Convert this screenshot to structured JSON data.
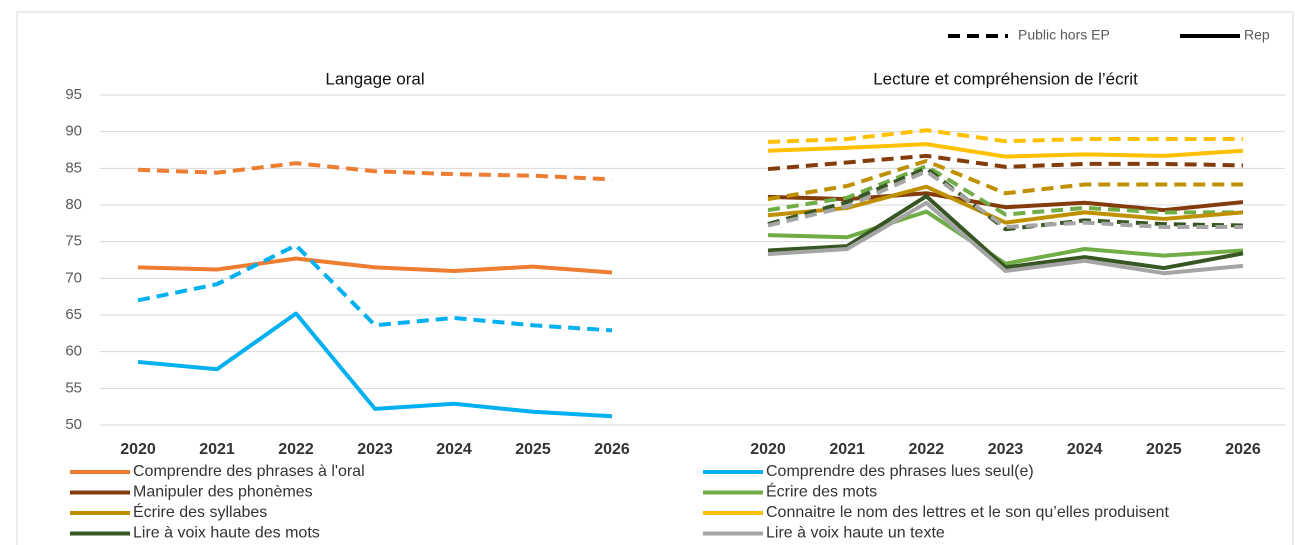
{
  "chart_data": {
    "type": "line",
    "categories": [
      "2020",
      "2021",
      "2022",
      "2023",
      "2024",
      "2025",
      "2026"
    ],
    "ylim": [
      50,
      95
    ],
    "yticks": [
      50,
      55,
      60,
      65,
      70,
      75,
      80,
      85,
      90,
      95
    ],
    "grid": true,
    "styles": [
      {
        "name": "Public hors EP",
        "dashed": true
      },
      {
        "name": "Rep",
        "dashed": false
      }
    ],
    "series": [
      {
        "name": "Comprendre des phrases à l'oral",
        "color": "#ed7d31",
        "panel": 0,
        "values": [
          [
            84.8,
            84.4,
            85.7,
            84.6,
            84.2,
            84.0,
            83.5
          ],
          [
            71.5,
            71.2,
            72.7,
            71.5,
            71.0,
            71.6,
            70.8
          ]
        ]
      },
      {
        "name": "Comprendre des phrases lues seul(e)",
        "color": "#00b0f0",
        "panel": 0,
        "values": [
          [
            67.0,
            69.2,
            74.5,
            63.6,
            64.6,
            63.6,
            62.9
          ],
          [
            58.6,
            57.6,
            65.2,
            52.2,
            52.9,
            51.8,
            51.2
          ]
        ]
      },
      {
        "name": "Manipuler des phonèmes",
        "color": "#843c0c",
        "panel": 1,
        "values": [
          [
            84.9,
            85.8,
            86.7,
            85.2,
            85.6,
            85.6,
            85.4
          ],
          [
            81.1,
            80.8,
            81.6,
            79.7,
            80.3,
            79.3,
            80.4
          ]
        ]
      },
      {
        "name": "Écrire des mots",
        "color": "#70ad47",
        "panel": 1,
        "values": [
          [
            79.3,
            81.0,
            85.3,
            78.7,
            79.6,
            79.0,
            79.0
          ],
          [
            75.9,
            75.6,
            79.1,
            72.0,
            74.0,
            73.1,
            73.8
          ]
        ]
      },
      {
        "name": "Écrire des syllabes",
        "color": "#bf9000",
        "panel": 1,
        "values": [
          [
            80.8,
            82.6,
            86.0,
            81.6,
            82.8,
            82.8,
            82.8
          ],
          [
            78.6,
            79.6,
            82.5,
            77.6,
            79.0,
            78.1,
            79.0
          ]
        ]
      },
      {
        "name": "Connaitre le nom des lettres et le son qu’elles produisent",
        "color": "#ffc000",
        "panel": 1,
        "values": [
          [
            88.6,
            89.0,
            90.2,
            88.7,
            89.0,
            89.0,
            89.0
          ],
          [
            87.4,
            87.8,
            88.3,
            86.6,
            86.9,
            86.7,
            87.4
          ]
        ]
      },
      {
        "name": "Lire à voix haute des mots",
        "color": "#375623",
        "panel": 1,
        "values": [
          [
            77.4,
            80.4,
            85.0,
            76.7,
            77.9,
            77.4,
            77.2
          ],
          [
            73.8,
            74.4,
            81.2,
            71.5,
            72.9,
            71.4,
            73.4
          ]
        ]
      },
      {
        "name": "Lire à voix haute un texte",
        "color": "#a5a5a5",
        "panel": 1,
        "values": [
          [
            77.2,
            79.8,
            84.6,
            77.0,
            77.6,
            77.0,
            77.0
          ],
          [
            73.3,
            74.0,
            80.3,
            71.0,
            72.4,
            70.7,
            71.7
          ]
        ]
      }
    ],
    "panels": [
      {
        "title": "Langage oral"
      },
      {
        "title": "Lecture et compréhension de l’écrit"
      }
    ]
  }
}
